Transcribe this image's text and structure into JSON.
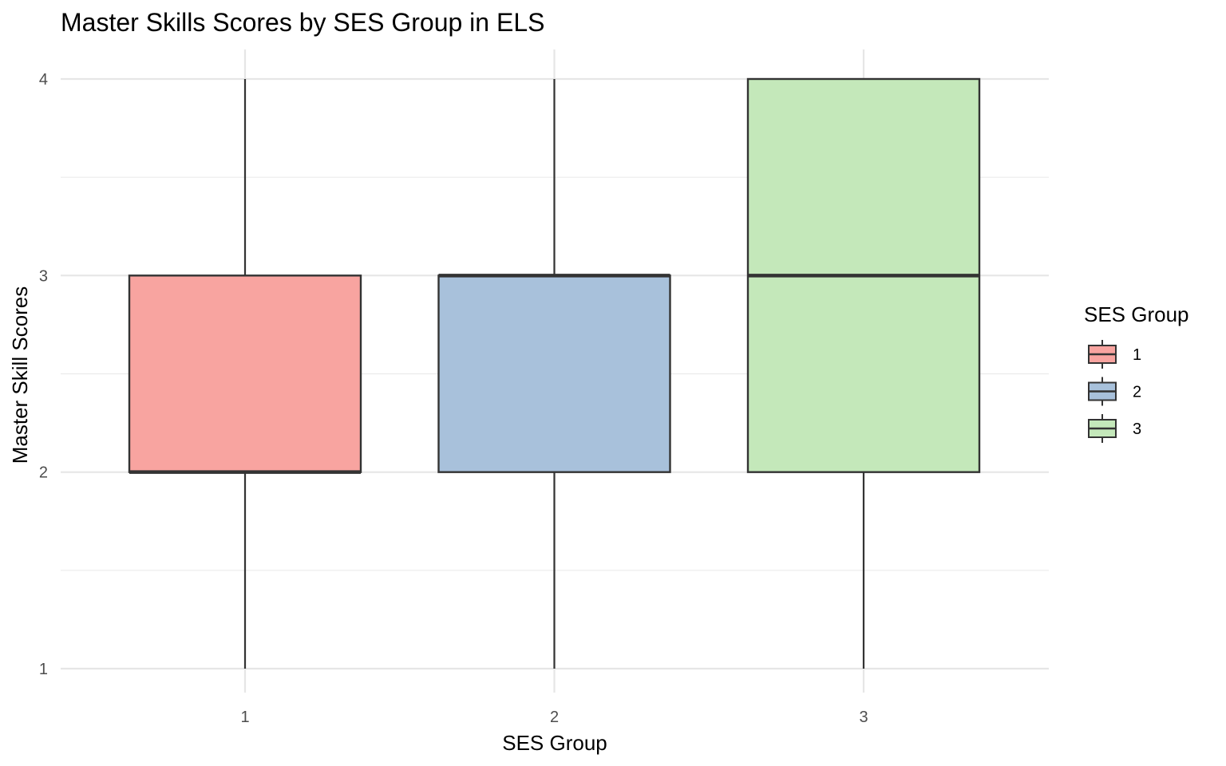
{
  "chart_data": {
    "type": "boxplot",
    "title": "Master Skills Scores by SES Group in ELS",
    "xlabel": "SES Group",
    "ylabel": "Master Skill Scores",
    "categories": [
      "1",
      "2",
      "3"
    ],
    "boxes": [
      {
        "category": "1",
        "min": 1,
        "q1": 2,
        "median": 2,
        "q3": 3,
        "max": 4,
        "color": "#F8A4A0"
      },
      {
        "category": "2",
        "min": 1,
        "q1": 2,
        "median": 3,
        "q3": 3,
        "max": 4,
        "color": "#A8C1DB"
      },
      {
        "category": "3",
        "min": 1,
        "q1": 2,
        "median": 3,
        "q3": 4,
        "max": 4,
        "color": "#C4E8BA"
      }
    ],
    "ylim": [
      0.9,
      4.15
    ],
    "y_ticks": [
      "1",
      "2",
      "3",
      "4"
    ],
    "grid": true,
    "legend": {
      "title": "SES Group",
      "placement": "right",
      "items": [
        {
          "label": "1",
          "color": "#F8A4A0"
        },
        {
          "label": "2",
          "color": "#A8C1DB"
        },
        {
          "label": "3",
          "color": "#C4E8BA"
        }
      ]
    }
  }
}
